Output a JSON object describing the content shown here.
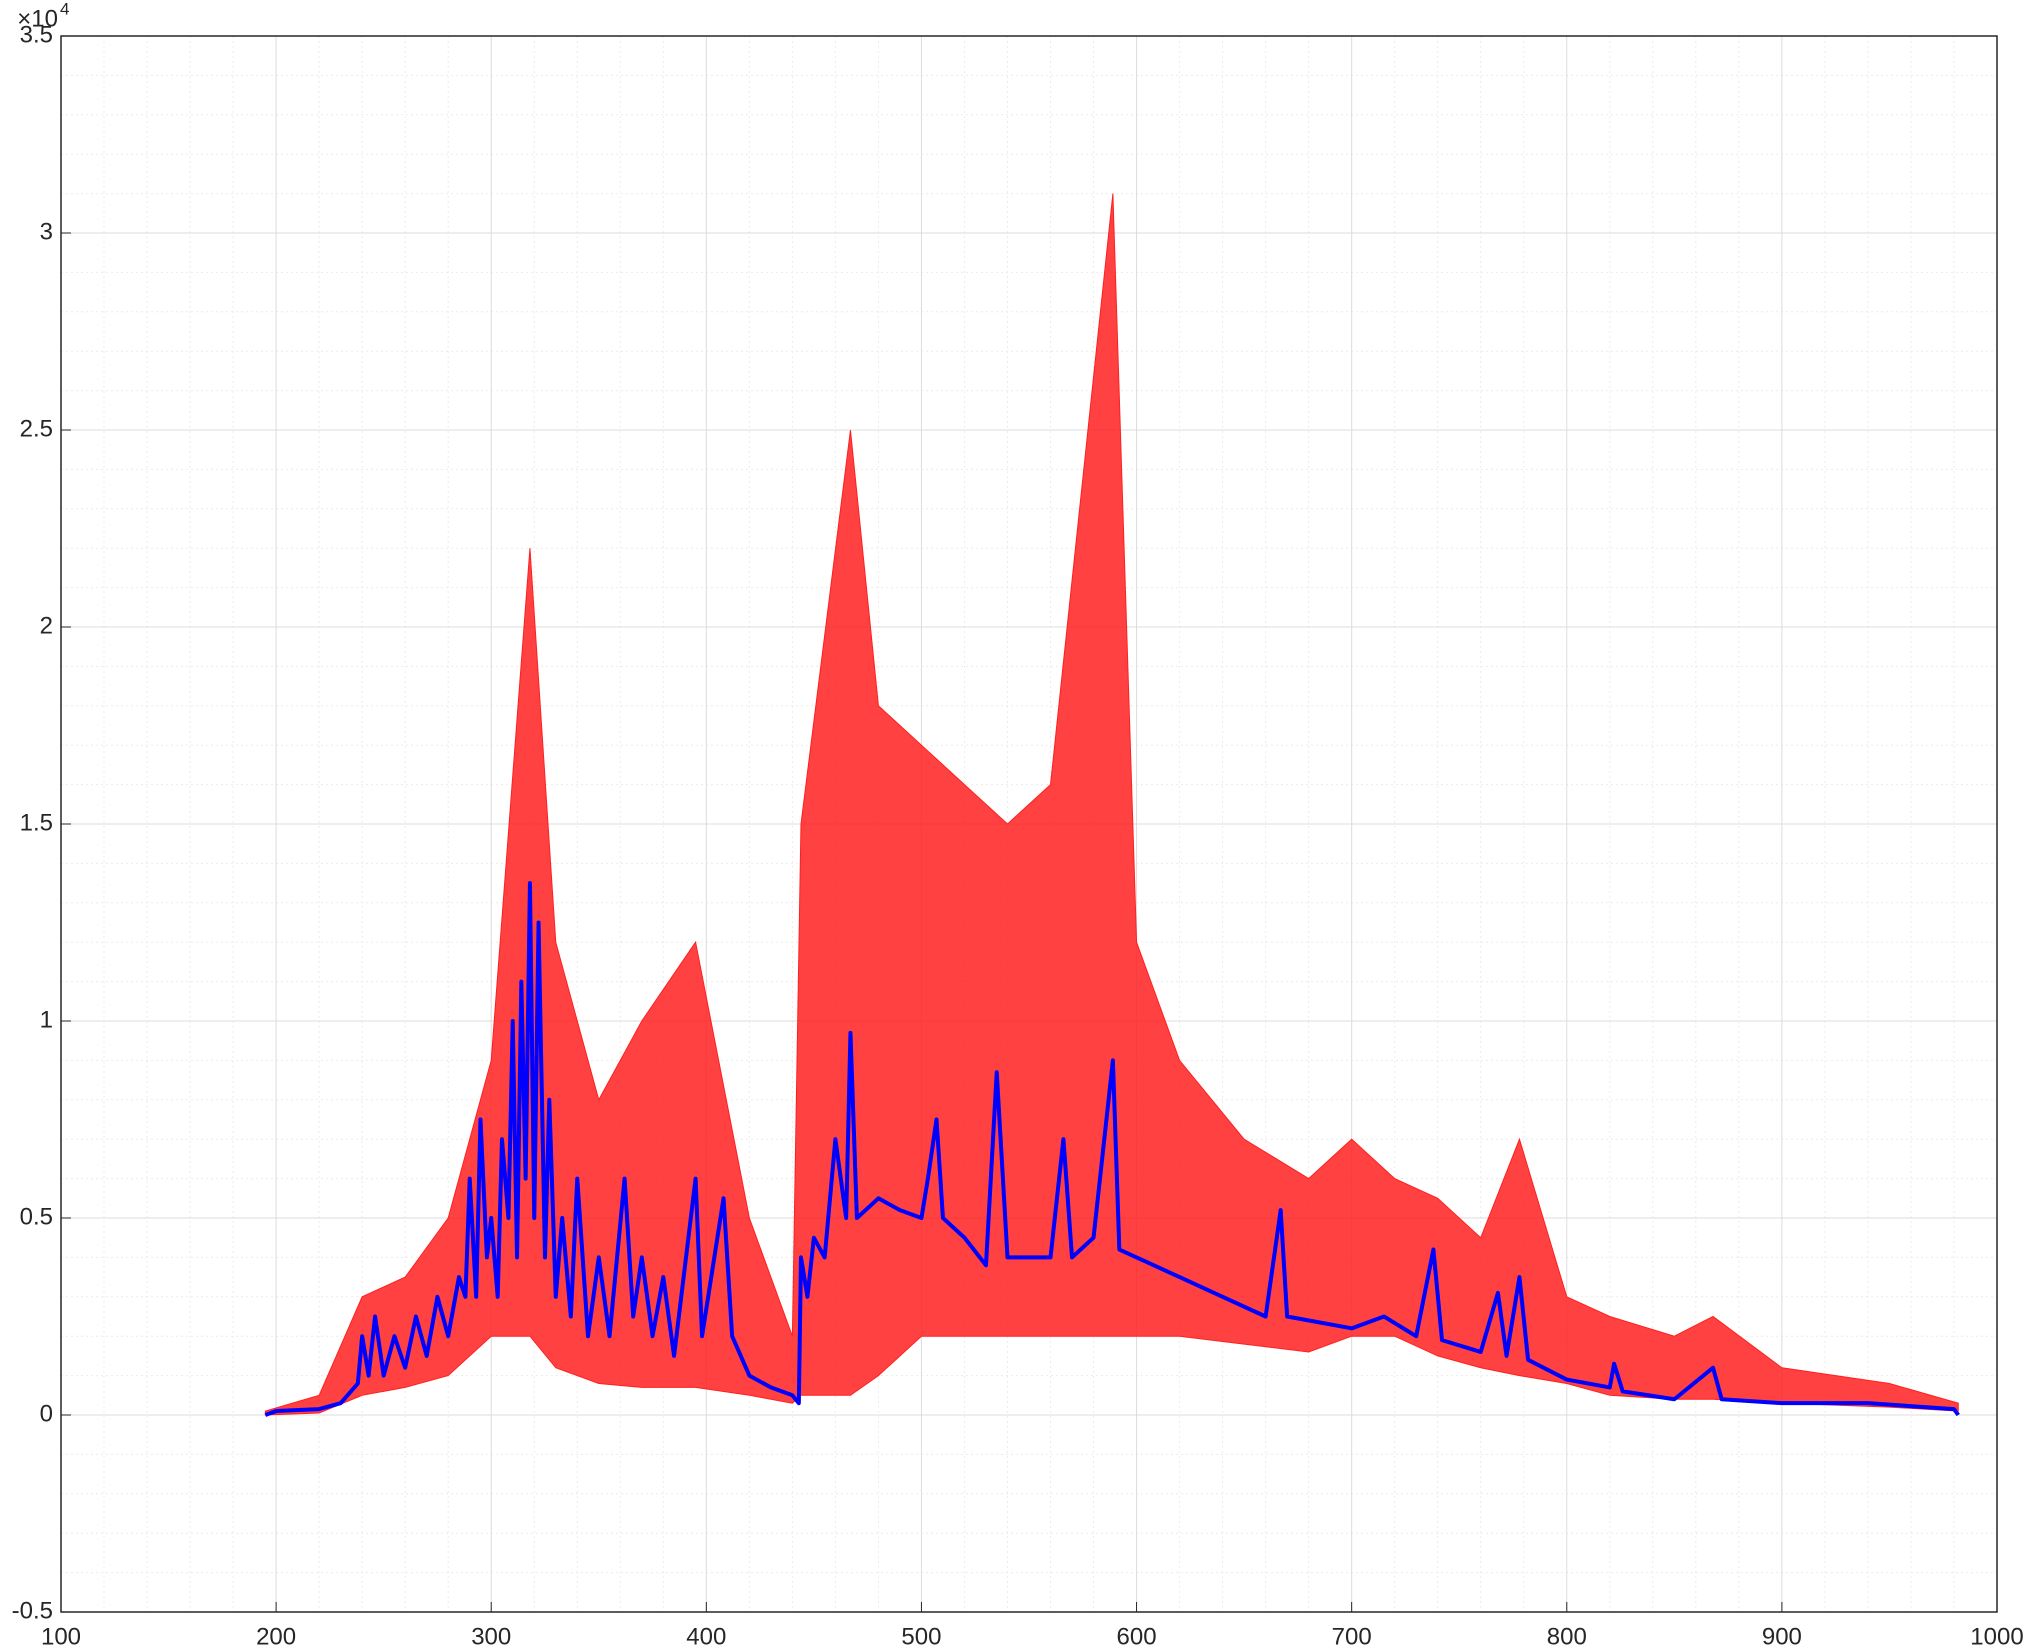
{
  "chart_data": {
    "type": "line",
    "xlim": [
      100,
      1000
    ],
    "xticks": [
      100,
      200,
      300,
      400,
      500,
      600,
      700,
      800,
      900,
      1000
    ],
    "ylim": [
      -0.5,
      3.5
    ],
    "yticks": [
      -0.5,
      0,
      0.5,
      1,
      1.5,
      2,
      2.5,
      3,
      3.5
    ],
    "y_multiplier": {
      "base": "×10",
      "power": "4"
    },
    "grid": true,
    "minor_grid": true,
    "band": {
      "color": "#ff2020",
      "x": [
        195,
        220,
        240,
        260,
        280,
        300,
        318,
        330,
        350,
        370,
        395,
        420,
        440,
        444,
        467,
        480,
        500,
        520,
        540,
        560,
        589,
        600,
        620,
        650,
        680,
        700,
        720,
        740,
        760,
        778,
        800,
        820,
        850,
        868,
        900,
        950,
        982
      ],
      "upper": [
        0.01,
        0.05,
        0.3,
        0.35,
        0.5,
        0.9,
        2.2,
        1.2,
        0.8,
        1.0,
        1.2,
        0.5,
        0.2,
        1.5,
        2.5,
        1.8,
        1.7,
        1.6,
        1.5,
        1.6,
        3.1,
        1.2,
        0.9,
        0.7,
        0.6,
        0.7,
        0.6,
        0.55,
        0.45,
        0.7,
        0.3,
        0.25,
        0.2,
        0.25,
        0.12,
        0.08,
        0.03
      ],
      "lower": [
        0,
        0.005,
        0.05,
        0.07,
        0.1,
        0.2,
        0.2,
        0.12,
        0.08,
        0.07,
        0.07,
        0.05,
        0.03,
        0.05,
        0.05,
        0.1,
        0.2,
        0.2,
        0.2,
        0.2,
        0.2,
        0.2,
        0.2,
        0.18,
        0.16,
        0.2,
        0.2,
        0.15,
        0.12,
        0.1,
        0.08,
        0.05,
        0.04,
        0.04,
        0.03,
        0.02,
        0.01
      ]
    },
    "series": [
      {
        "color": "#0000ff",
        "x": [
          195,
          200,
          220,
          230,
          238,
          240,
          243,
          246,
          250,
          255,
          260,
          265,
          270,
          275,
          280,
          285,
          288,
          290,
          293,
          295,
          298,
          300,
          303,
          305,
          308,
          310,
          312,
          314,
          316,
          318,
          320,
          322,
          325,
          327,
          330,
          333,
          337,
          340,
          345,
          350,
          355,
          362,
          366,
          370,
          375,
          380,
          385,
          395,
          398,
          408,
          412,
          420,
          430,
          440,
          443,
          444,
          447,
          450,
          455,
          460,
          465,
          467,
          470,
          480,
          490,
          500,
          503,
          507,
          510,
          520,
          530,
          535,
          540,
          560,
          566,
          570,
          580,
          589,
          592,
          600,
          620,
          640,
          660,
          667,
          670,
          700,
          715,
          730,
          738,
          742,
          760,
          768,
          772,
          778,
          782,
          800,
          820,
          822,
          826,
          850,
          868,
          872,
          900,
          940,
          980,
          982
        ],
        "values": [
          0,
          0.01,
          0.015,
          0.03,
          0.08,
          0.2,
          0.1,
          0.25,
          0.1,
          0.2,
          0.12,
          0.25,
          0.15,
          0.3,
          0.2,
          0.35,
          0.3,
          0.6,
          0.3,
          0.75,
          0.4,
          0.5,
          0.3,
          0.7,
          0.5,
          1.0,
          0.4,
          1.1,
          0.6,
          1.35,
          0.5,
          1.25,
          0.4,
          0.8,
          0.3,
          0.5,
          0.25,
          0.6,
          0.2,
          0.4,
          0.2,
          0.6,
          0.25,
          0.4,
          0.2,
          0.35,
          0.15,
          0.6,
          0.2,
          0.55,
          0.2,
          0.1,
          0.07,
          0.05,
          0.03,
          0.4,
          0.3,
          0.45,
          0.4,
          0.7,
          0.5,
          0.97,
          0.5,
          0.55,
          0.52,
          0.5,
          0.6,
          0.75,
          0.5,
          0.45,
          0.38,
          0.87,
          0.4,
          0.4,
          0.7,
          0.4,
          0.45,
          0.9,
          0.42,
          0.4,
          0.35,
          0.3,
          0.25,
          0.52,
          0.25,
          0.22,
          0.25,
          0.2,
          0.42,
          0.19,
          0.16,
          0.31,
          0.15,
          0.35,
          0.14,
          0.09,
          0.07,
          0.13,
          0.06,
          0.04,
          0.12,
          0.04,
          0.03,
          0.03,
          0.015,
          0
        ]
      }
    ]
  }
}
